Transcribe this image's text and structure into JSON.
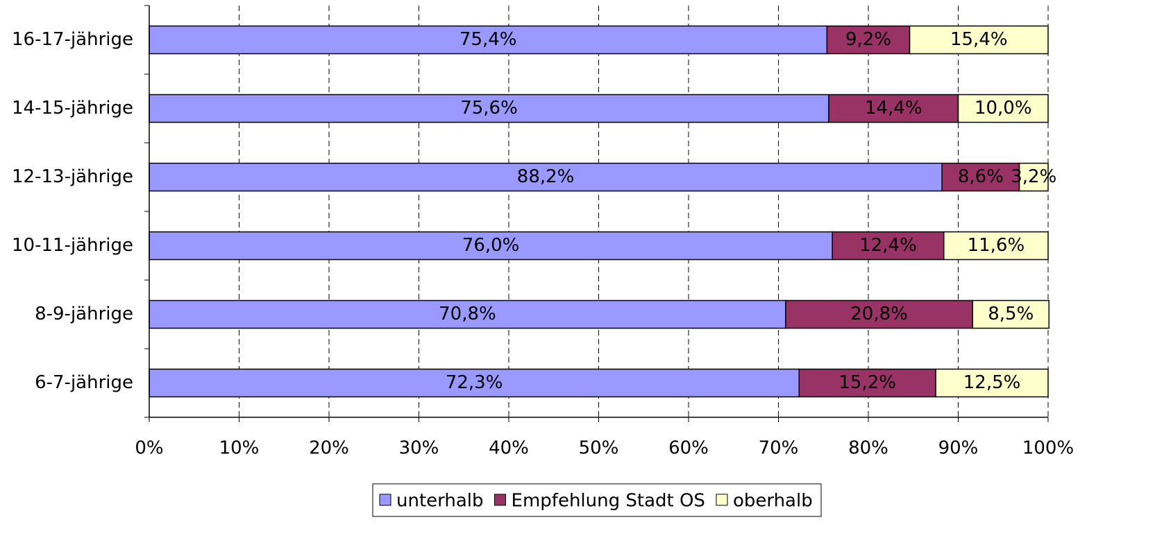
{
  "chart_data": {
    "type": "stacked_bar_horizontal",
    "categories": [
      "6-7-jährige",
      "8-9-jährige",
      "10-11-jährige",
      "12-13-jährige",
      "14-15-jährige",
      "16-17-jährige"
    ],
    "series": [
      {
        "name": "unterhalb",
        "color": "#9999ff",
        "values": [
          72.3,
          70.8,
          76.0,
          88.2,
          75.6,
          75.4
        ],
        "value_labels": [
          "72,3%",
          "70,8%",
          "76,0%",
          "88,2%",
          "75,6%",
          "75,4%"
        ]
      },
      {
        "name": "Empfehlung Stadt OS",
        "color": "#993366",
        "values": [
          15.2,
          20.8,
          12.4,
          8.6,
          14.4,
          9.2
        ],
        "value_labels": [
          "15,2%",
          "20,8%",
          "12,4%",
          "8,6%",
          "14,4%",
          "9,2%"
        ]
      },
      {
        "name": "oberhalb",
        "color": "#ffffcc",
        "values": [
          12.5,
          8.5,
          11.6,
          3.2,
          10.0,
          15.4
        ],
        "value_labels": [
          "12,5%",
          "8,5%",
          "11,6%",
          "3,2%",
          "10,0%",
          "15,4%"
        ]
      }
    ],
    "xlim": [
      0,
      100
    ],
    "xticks": [
      {
        "value": 0,
        "label": "0%"
      },
      {
        "value": 10,
        "label": "10%"
      },
      {
        "value": 20,
        "label": "20%"
      },
      {
        "value": 30,
        "label": "30%"
      },
      {
        "value": 40,
        "label": "40%"
      },
      {
        "value": 50,
        "label": "50%"
      },
      {
        "value": 60,
        "label": "60%"
      },
      {
        "value": 70,
        "label": "70%"
      },
      {
        "value": 80,
        "label": "80%"
      },
      {
        "value": 90,
        "label": "90%"
      },
      {
        "value": 100,
        "label": "100%"
      }
    ],
    "grid": true,
    "legend": "bottom"
  }
}
